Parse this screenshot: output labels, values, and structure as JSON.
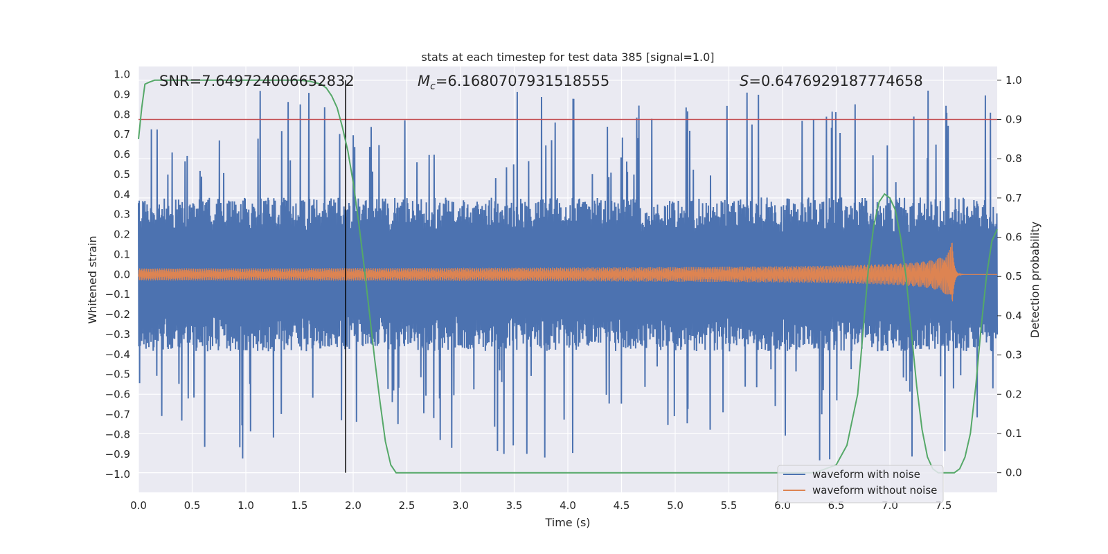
{
  "chart_data": {
    "type": "line",
    "title": "stats at each timestep for test data 385 [signal=1.0]",
    "xlabel": "Time (s)",
    "ylabel": "Whitened strain",
    "ylabel_right": "Detection probability",
    "xlim": [
      0.0,
      8.0
    ],
    "ylim": [
      -1.09,
      1.04
    ],
    "ylim_right": [
      -0.05,
      1.035
    ],
    "xticks": [
      "0.0",
      "0.5",
      "1.0",
      "1.5",
      "2.0",
      "2.5",
      "3.0",
      "3.5",
      "4.0",
      "4.5",
      "5.0",
      "5.5",
      "6.0",
      "6.5",
      "7.0",
      "7.5"
    ],
    "xtick_values": [
      0.0,
      0.5,
      1.0,
      1.5,
      2.0,
      2.5,
      3.0,
      3.5,
      4.0,
      4.5,
      5.0,
      5.5,
      6.0,
      6.5,
      7.0,
      7.5
    ],
    "yticks": [
      "1.0",
      "0.9",
      "0.8",
      "0.7",
      "0.6",
      "0.5",
      "0.4",
      "0.3",
      "0.2",
      "0.1",
      "0.0",
      "−0.1",
      "−0.2",
      "−0.3",
      "−0.4",
      "−0.5",
      "−0.6",
      "−0.7",
      "−0.8",
      "−0.9",
      "−1.0"
    ],
    "ytick_values": [
      1.0,
      0.9,
      0.8,
      0.7,
      0.6,
      0.5,
      0.4,
      0.3,
      0.2,
      0.1,
      0.0,
      -0.1,
      -0.2,
      -0.3,
      -0.4,
      -0.5,
      -0.6,
      -0.7,
      -0.8,
      -0.9,
      -1.0
    ],
    "yticks_right": [
      "1.0",
      "0.9",
      "0.8",
      "0.7",
      "0.6",
      "0.5",
      "0.4",
      "0.3",
      "0.2",
      "0.1",
      "0.0"
    ],
    "ytick_right_values": [
      1.0,
      0.9,
      0.8,
      0.7,
      0.6,
      0.5,
      0.4,
      0.3,
      0.2,
      0.1,
      0.0
    ],
    "annotations": {
      "snr": "SNR=7.649724006652832",
      "mc_symbol": "M",
      "mc_sub": "c",
      "mc_value": "=6.1680707931518555",
      "s_symbol": "S",
      "s_value": "=0.6476929187774658"
    },
    "threshold": {
      "value": 0.9,
      "axis": "right",
      "color": "#c44e52"
    },
    "marker_line": {
      "x": 1.93,
      "color": "#000000"
    },
    "series": [
      {
        "name": "waveform with noise",
        "color": "#4c72b0",
        "kind": "noise",
        "amplitude_typical": 0.35,
        "amplitude_peak": 0.93
      },
      {
        "name": "waveform without noise",
        "color": "#dd8452",
        "kind": "chirp",
        "t_start": 0.0,
        "t_merger": 7.58,
        "amp_start": 0.02,
        "amp_peak": 0.17
      },
      {
        "name": "detection probability",
        "color": "#55a868",
        "axis": "right",
        "x": [
          0.0,
          0.03,
          0.06,
          0.1,
          0.15,
          0.2,
          0.3,
          0.5,
          1.0,
          1.5,
          1.6,
          1.7,
          1.75,
          1.8,
          1.85,
          1.9,
          1.95,
          2.0,
          2.05,
          2.1,
          2.15,
          2.2,
          2.25,
          2.3,
          2.35,
          2.4,
          2.5,
          3.0,
          4.0,
          5.0,
          6.0,
          6.3,
          6.5,
          6.6,
          6.7,
          6.75,
          6.8,
          6.85,
          6.9,
          6.95,
          7.0,
          7.05,
          7.1,
          7.15,
          7.2,
          7.25,
          7.3,
          7.35,
          7.4,
          7.45,
          7.5,
          7.55,
          7.6,
          7.65,
          7.7,
          7.75,
          7.8,
          7.85,
          7.9,
          7.95,
          8.0
        ],
        "y": [
          0.85,
          0.93,
          0.99,
          0.995,
          1.0,
          1.0,
          1.0,
          1.0,
          1.0,
          1.0,
          0.997,
          0.99,
          0.98,
          0.96,
          0.93,
          0.88,
          0.82,
          0.74,
          0.64,
          0.53,
          0.41,
          0.29,
          0.18,
          0.08,
          0.02,
          0.0,
          0.0,
          0.0,
          0.0,
          0.0,
          0.0,
          0.0,
          0.02,
          0.07,
          0.2,
          0.36,
          0.52,
          0.63,
          0.69,
          0.71,
          0.7,
          0.67,
          0.6,
          0.5,
          0.36,
          0.22,
          0.11,
          0.04,
          0.01,
          0.0,
          0.0,
          0.0,
          0.0,
          0.01,
          0.04,
          0.1,
          0.22,
          0.37,
          0.5,
          0.59,
          0.62
        ]
      }
    ],
    "legend": {
      "position": "bottom-right",
      "entries": [
        "waveform with noise",
        "waveform without noise"
      ]
    }
  }
}
